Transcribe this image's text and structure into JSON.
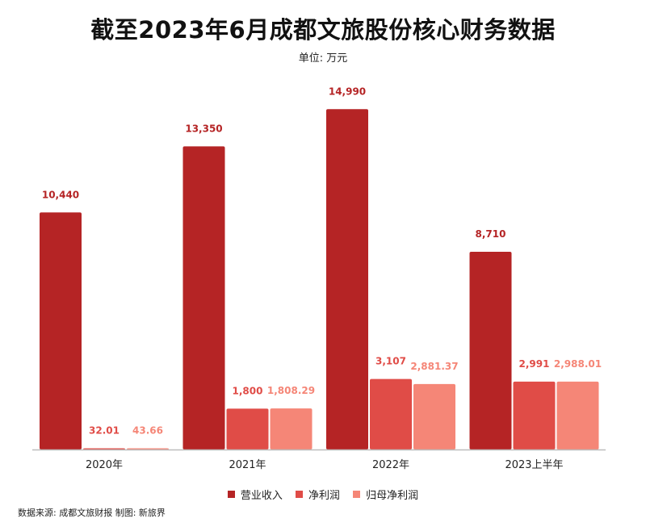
{
  "chart_data": {
    "type": "bar",
    "title": "截至2023年6月成都文旅股份核心财务数据",
    "subtitle": "单位: 万元",
    "categories": [
      "2020年",
      "2021年",
      "2022年",
      "2023上半年"
    ],
    "series": [
      {
        "name": "营业收入",
        "color": "#b52425",
        "values": [
          10440,
          13350,
          14990,
          8710
        ],
        "labels": [
          "10,440",
          "13,350",
          "14,990",
          "8,710"
        ]
      },
      {
        "name": "净利润",
        "color": "#e04c47",
        "values": [
          32.01,
          1800,
          3107,
          2991
        ],
        "labels": [
          "32.01",
          "1,800",
          "3,107",
          "2,991"
        ]
      },
      {
        "name": "归母净利润",
        "color": "#f58677",
        "values": [
          43.66,
          1808.29,
          2881.37,
          2988.01
        ],
        "labels": [
          "43.66",
          "1,808.29",
          "2,881.37",
          "2,988.01"
        ]
      }
    ],
    "ylim": [
      0,
      15000
    ],
    "legend_position": "bottom",
    "source": "数据来源: 成都文旅财报  制图: 新旅界"
  }
}
